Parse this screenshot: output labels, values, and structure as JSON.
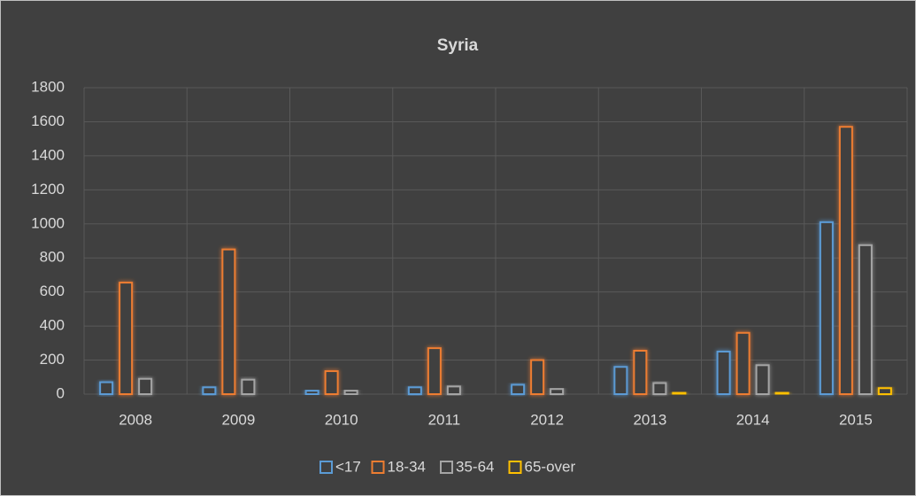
{
  "chart_data": {
    "type": "bar",
    "title": "Syria",
    "categories": [
      "2008",
      "2009",
      "2010",
      "2011",
      "2012",
      "2013",
      "2014",
      "2015"
    ],
    "series": [
      {
        "name": "<17",
        "color": "#5b9bd5",
        "values": [
          70,
          40,
          20,
          40,
          55,
          160,
          250,
          1010
        ]
      },
      {
        "name": "18-34",
        "color": "#ed7d31",
        "values": [
          655,
          850,
          135,
          270,
          200,
          255,
          360,
          1570
        ]
      },
      {
        "name": "35-64",
        "color": "#a5a5a5",
        "values": [
          90,
          85,
          20,
          45,
          30,
          65,
          170,
          875
        ]
      },
      {
        "name": "65-over",
        "color": "#ffc000",
        "values": [
          0,
          0,
          0,
          0,
          0,
          10,
          10,
          35
        ]
      }
    ],
    "ylim": [
      0,
      1800
    ],
    "yticks": [
      0,
      200,
      400,
      600,
      800,
      1000,
      1200,
      1400,
      1600,
      1800
    ],
    "grid": true,
    "legend": "bottom"
  }
}
